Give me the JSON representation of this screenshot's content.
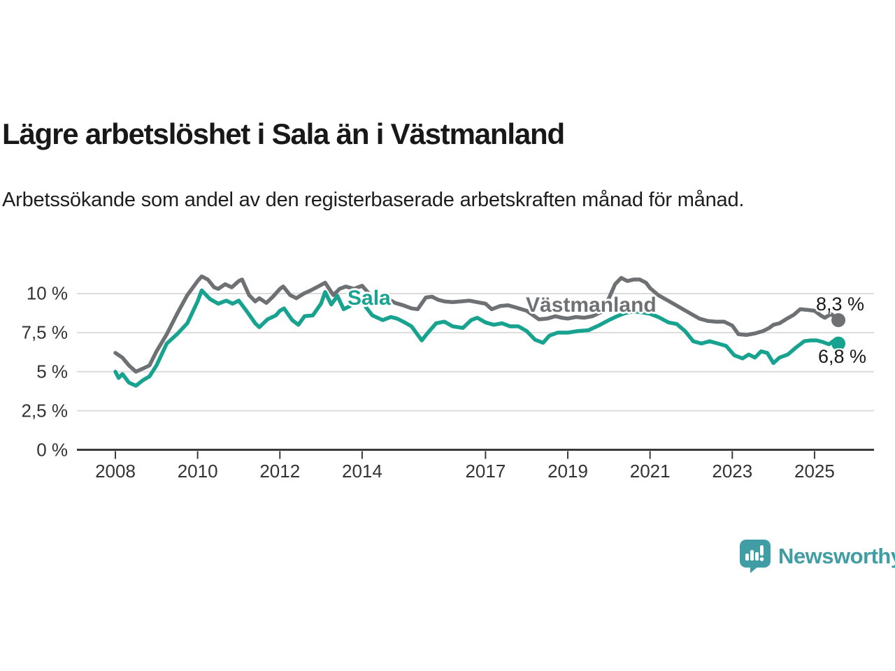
{
  "header": {
    "title": "Lägre arbetslöshet i Sala än i Västmanland",
    "subtitle": "Arbetssökande som andel av den registerbaserade arbetskraften månad för månad."
  },
  "chart_data": {
    "type": "line",
    "x_unit": "decimal-year",
    "xlim": [
      2007.05,
      2026.45
    ],
    "ylim": [
      0,
      11.6
    ],
    "grid": "horizontal",
    "legend_position": "inline-labels",
    "y_ticks": [
      {
        "value": 10,
        "label": "10 %"
      },
      {
        "value": 7.5,
        "label": "7,5 %"
      },
      {
        "value": 5,
        "label": "5 %"
      },
      {
        "value": 2.5,
        "label": "2,5 %"
      },
      {
        "value": 0,
        "label": "0 %"
      }
    ],
    "x_ticks": [
      {
        "value": 2008,
        "label": "2008"
      },
      {
        "value": 2010,
        "label": "2010"
      },
      {
        "value": 2012,
        "label": "2012"
      },
      {
        "value": 2014,
        "label": "2014"
      },
      {
        "value": 2017,
        "label": "2017"
      },
      {
        "value": 2019,
        "label": "2019"
      },
      {
        "value": 2021,
        "label": "2021"
      },
      {
        "value": 2023,
        "label": "2023"
      },
      {
        "value": 2025,
        "label": "2025"
      }
    ],
    "series": [
      {
        "name": "Västmanland",
        "label_text": "Västmanland",
        "end_label": "8,3 %",
        "end_value": 8.3,
        "color": "#6e7173",
        "points": [
          [
            2008.0,
            6.2
          ],
          [
            2008.17,
            5.9
          ],
          [
            2008.33,
            5.4
          ],
          [
            2008.5,
            5.0
          ],
          [
            2008.67,
            5.2
          ],
          [
            2008.83,
            5.4
          ],
          [
            2009.0,
            6.3
          ],
          [
            2009.25,
            7.4
          ],
          [
            2009.5,
            8.7
          ],
          [
            2009.75,
            9.9
          ],
          [
            2010.0,
            10.8
          ],
          [
            2010.1,
            11.1
          ],
          [
            2010.25,
            10.9
          ],
          [
            2010.4,
            10.4
          ],
          [
            2010.5,
            10.3
          ],
          [
            2010.67,
            10.6
          ],
          [
            2010.83,
            10.4
          ],
          [
            2011.0,
            10.8
          ],
          [
            2011.08,
            10.9
          ],
          [
            2011.25,
            9.9
          ],
          [
            2011.4,
            9.5
          ],
          [
            2011.5,
            9.7
          ],
          [
            2011.67,
            9.4
          ],
          [
            2011.83,
            9.8
          ],
          [
            2012.0,
            10.3
          ],
          [
            2012.08,
            10.45
          ],
          [
            2012.25,
            9.9
          ],
          [
            2012.4,
            9.7
          ],
          [
            2012.58,
            10.0
          ],
          [
            2012.75,
            10.2
          ],
          [
            2013.0,
            10.55
          ],
          [
            2013.1,
            10.7
          ],
          [
            2013.3,
            9.9
          ],
          [
            2013.45,
            10.3
          ],
          [
            2013.6,
            10.45
          ],
          [
            2013.8,
            10.3
          ],
          [
            2014.0,
            10.5
          ],
          [
            2014.2,
            9.9
          ],
          [
            2014.4,
            9.8
          ],
          [
            2014.6,
            9.7
          ],
          [
            2014.8,
            9.4
          ],
          [
            2015.0,
            9.25
          ],
          [
            2015.2,
            9.05
          ],
          [
            2015.35,
            9.0
          ],
          [
            2015.55,
            9.75
          ],
          [
            2015.7,
            9.8
          ],
          [
            2015.85,
            9.6
          ],
          [
            2016.0,
            9.5
          ],
          [
            2016.2,
            9.45
          ],
          [
            2016.4,
            9.5
          ],
          [
            2016.6,
            9.55
          ],
          [
            2016.8,
            9.45
          ],
          [
            2017.0,
            9.35
          ],
          [
            2017.15,
            9.0
          ],
          [
            2017.35,
            9.2
          ],
          [
            2017.55,
            9.25
          ],
          [
            2017.75,
            9.1
          ],
          [
            2018.0,
            8.9
          ],
          [
            2018.3,
            8.35
          ],
          [
            2018.5,
            8.4
          ],
          [
            2018.7,
            8.55
          ],
          [
            2018.85,
            8.45
          ],
          [
            2019.0,
            8.4
          ],
          [
            2019.2,
            8.5
          ],
          [
            2019.4,
            8.45
          ],
          [
            2019.6,
            8.55
          ],
          [
            2019.8,
            8.8
          ],
          [
            2020.0,
            9.7
          ],
          [
            2020.15,
            10.6
          ],
          [
            2020.3,
            11.0
          ],
          [
            2020.45,
            10.8
          ],
          [
            2020.6,
            10.9
          ],
          [
            2020.75,
            10.9
          ],
          [
            2020.9,
            10.7
          ],
          [
            2021.0,
            10.35
          ],
          [
            2021.2,
            9.9
          ],
          [
            2021.4,
            9.6
          ],
          [
            2021.6,
            9.3
          ],
          [
            2021.8,
            9.0
          ],
          [
            2022.0,
            8.7
          ],
          [
            2022.2,
            8.4
          ],
          [
            2022.4,
            8.25
          ],
          [
            2022.6,
            8.2
          ],
          [
            2022.8,
            8.2
          ],
          [
            2023.0,
            7.95
          ],
          [
            2023.15,
            7.4
          ],
          [
            2023.35,
            7.35
          ],
          [
            2023.55,
            7.45
          ],
          [
            2023.75,
            7.6
          ],
          [
            2023.9,
            7.8
          ],
          [
            2024.0,
            8.0
          ],
          [
            2024.15,
            8.1
          ],
          [
            2024.3,
            8.35
          ],
          [
            2024.5,
            8.65
          ],
          [
            2024.65,
            9.0
          ],
          [
            2024.85,
            8.95
          ],
          [
            2025.0,
            8.9
          ],
          [
            2025.15,
            8.6
          ],
          [
            2025.25,
            8.45
          ],
          [
            2025.4,
            8.7
          ],
          [
            2025.58,
            8.3
          ]
        ]
      },
      {
        "name": "Sala",
        "label_text": "Sala",
        "end_label": "6,8 %",
        "end_value": 6.8,
        "color": "#17a38f",
        "points": [
          [
            2008.0,
            5.0
          ],
          [
            2008.08,
            4.6
          ],
          [
            2008.17,
            4.85
          ],
          [
            2008.33,
            4.3
          ],
          [
            2008.5,
            4.1
          ],
          [
            2008.67,
            4.45
          ],
          [
            2008.83,
            4.7
          ],
          [
            2009.0,
            5.4
          ],
          [
            2009.25,
            6.8
          ],
          [
            2009.5,
            7.4
          ],
          [
            2009.75,
            8.1
          ],
          [
            2010.0,
            9.5
          ],
          [
            2010.1,
            10.2
          ],
          [
            2010.3,
            9.65
          ],
          [
            2010.5,
            9.35
          ],
          [
            2010.7,
            9.55
          ],
          [
            2010.85,
            9.35
          ],
          [
            2011.0,
            9.55
          ],
          [
            2011.2,
            8.85
          ],
          [
            2011.4,
            8.1
          ],
          [
            2011.5,
            7.85
          ],
          [
            2011.7,
            8.35
          ],
          [
            2011.9,
            8.6
          ],
          [
            2012.0,
            8.9
          ],
          [
            2012.1,
            9.05
          ],
          [
            2012.3,
            8.3
          ],
          [
            2012.45,
            8.0
          ],
          [
            2012.6,
            8.55
          ],
          [
            2012.8,
            8.6
          ],
          [
            2013.0,
            9.35
          ],
          [
            2013.1,
            10.1
          ],
          [
            2013.25,
            9.3
          ],
          [
            2013.4,
            9.85
          ],
          [
            2013.55,
            9.0
          ],
          [
            2013.7,
            9.2
          ],
          [
            2013.85,
            9.5
          ],
          [
            2014.0,
            9.7
          ],
          [
            2014.1,
            9.1
          ],
          [
            2014.25,
            8.6
          ],
          [
            2014.5,
            8.3
          ],
          [
            2014.7,
            8.5
          ],
          [
            2014.85,
            8.4
          ],
          [
            2015.0,
            8.2
          ],
          [
            2015.2,
            7.9
          ],
          [
            2015.45,
            7.0
          ],
          [
            2015.6,
            7.5
          ],
          [
            2015.8,
            8.1
          ],
          [
            2016.0,
            8.2
          ],
          [
            2016.2,
            7.9
          ],
          [
            2016.45,
            7.8
          ],
          [
            2016.65,
            8.3
          ],
          [
            2016.8,
            8.45
          ],
          [
            2017.0,
            8.15
          ],
          [
            2017.2,
            8.0
          ],
          [
            2017.4,
            8.1
          ],
          [
            2017.6,
            7.9
          ],
          [
            2017.8,
            7.9
          ],
          [
            2018.0,
            7.6
          ],
          [
            2018.2,
            7.05
          ],
          [
            2018.4,
            6.85
          ],
          [
            2018.55,
            7.3
          ],
          [
            2018.75,
            7.5
          ],
          [
            2019.0,
            7.5
          ],
          [
            2019.25,
            7.6
          ],
          [
            2019.5,
            7.65
          ],
          [
            2019.75,
            7.95
          ],
          [
            2020.0,
            8.3
          ],
          [
            2020.2,
            8.55
          ],
          [
            2020.4,
            8.75
          ],
          [
            2020.6,
            8.85
          ],
          [
            2020.8,
            8.8
          ],
          [
            2021.0,
            8.7
          ],
          [
            2021.2,
            8.5
          ],
          [
            2021.45,
            8.15
          ],
          [
            2021.65,
            8.05
          ],
          [
            2021.85,
            7.6
          ],
          [
            2022.05,
            6.95
          ],
          [
            2022.25,
            6.8
          ],
          [
            2022.45,
            6.95
          ],
          [
            2022.65,
            6.8
          ],
          [
            2022.85,
            6.65
          ],
          [
            2023.05,
            6.05
          ],
          [
            2023.25,
            5.85
          ],
          [
            2023.4,
            6.1
          ],
          [
            2023.55,
            5.9
          ],
          [
            2023.7,
            6.3
          ],
          [
            2023.85,
            6.2
          ],
          [
            2024.0,
            5.55
          ],
          [
            2024.15,
            5.9
          ],
          [
            2024.35,
            6.1
          ],
          [
            2024.55,
            6.55
          ],
          [
            2024.75,
            6.95
          ],
          [
            2024.9,
            7.0
          ],
          [
            2025.05,
            7.0
          ],
          [
            2025.2,
            6.9
          ],
          [
            2025.35,
            6.75
          ],
          [
            2025.45,
            6.95
          ],
          [
            2025.58,
            6.8
          ]
        ]
      }
    ],
    "styles": {
      "gridline_color": "#dcdcdc",
      "axis_color": "#3b3b3b",
      "tick_label_color": "#333333",
      "end_label_color": "#191919"
    }
  },
  "branding": {
    "logo_text": "Newsworthy",
    "logo_color": "#3f9da3"
  }
}
